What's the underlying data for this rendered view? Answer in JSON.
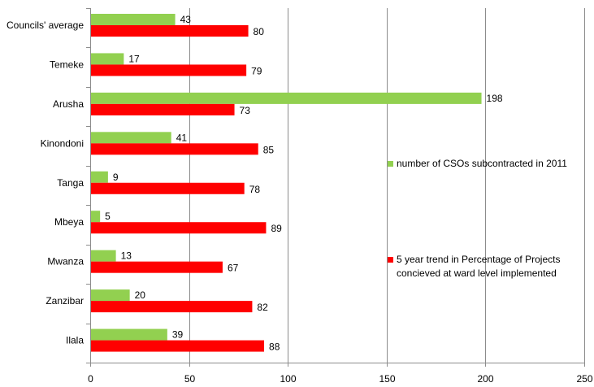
{
  "chart_data": {
    "type": "bar",
    "orientation": "horizontal",
    "categories": [
      "Councils' average",
      "Temeke",
      "Arusha",
      "Kinondoni",
      "Tanga",
      "Mbeya",
      "Mwanza",
      "Zanzibar",
      "Ilala"
    ],
    "series": [
      {
        "name": "number of CSOs subcontracted in 2011",
        "color": "#92d050",
        "values": [
          43,
          17,
          198,
          41,
          9,
          5,
          13,
          20,
          39
        ]
      },
      {
        "name": "5 year trend in Percentage of Projects concieved at ward level implemented",
        "color": "#ff0000",
        "values": [
          80,
          79,
          73,
          85,
          78,
          89,
          67,
          82,
          88
        ]
      }
    ],
    "xlim": [
      0,
      250
    ],
    "xticks": [
      0,
      50,
      100,
      150,
      200,
      250
    ],
    "grid": "vertical",
    "legend_position": "right"
  },
  "legend": {
    "item1": "number of CSOs subcontracted in 2011",
    "item2_line1": "5 year trend in Percentage of Projects",
    "item2_line2": "concieved at ward level implemented"
  }
}
